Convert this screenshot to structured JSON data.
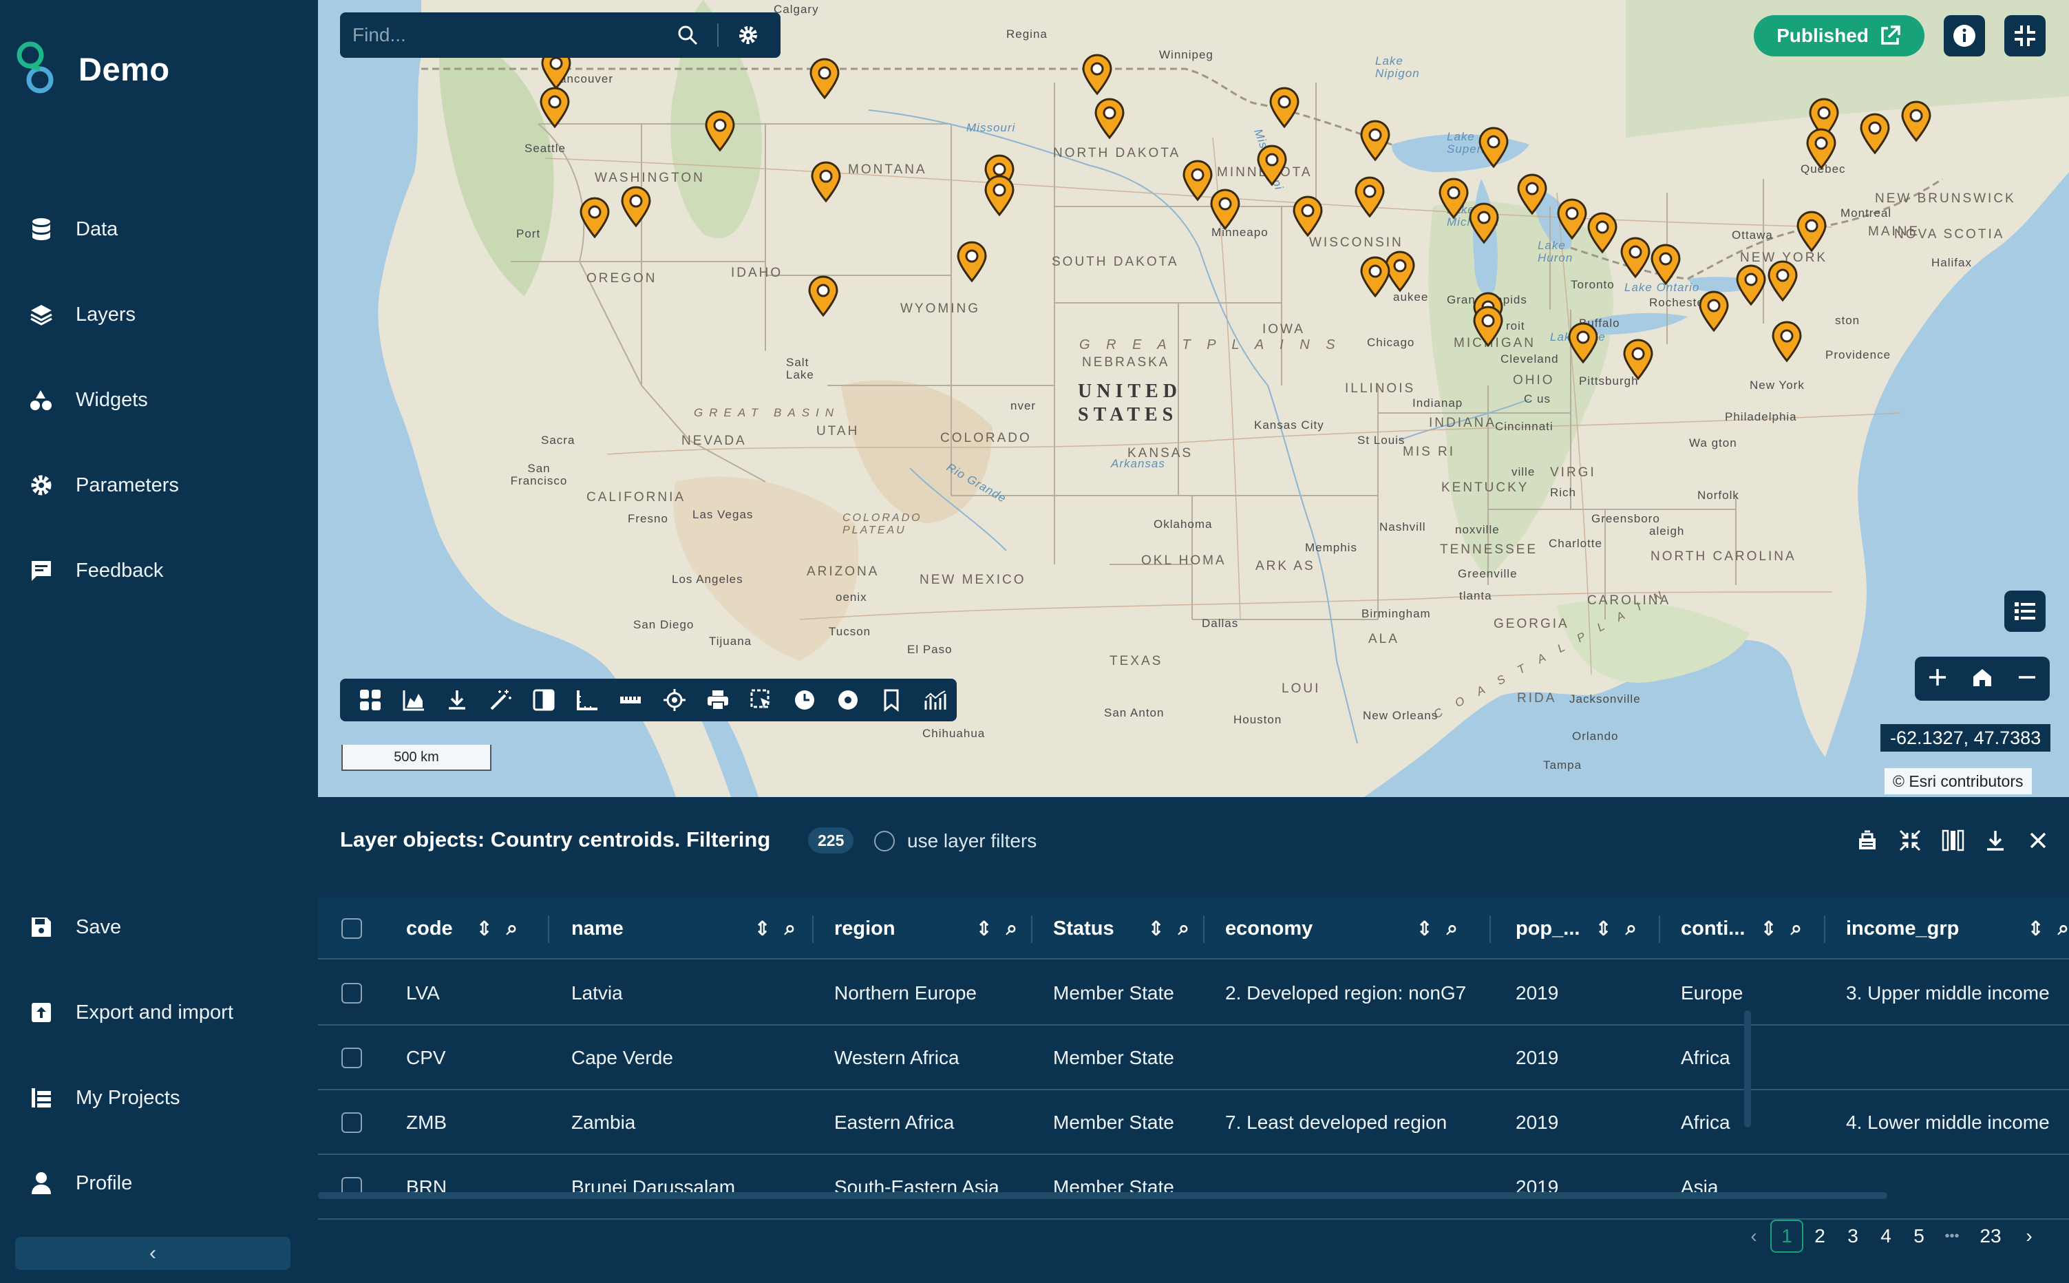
{
  "brand": {
    "title": "Demo"
  },
  "nav": {
    "data": "Data",
    "layers": "Layers",
    "widgets": "Widgets",
    "parameters": "Parameters",
    "feedback": "Feedback",
    "save": "Save",
    "export_import": "Export and import",
    "my_projects": "My Projects",
    "profile": "Profile"
  },
  "search": {
    "placeholder": "Find..."
  },
  "header": {
    "published_label": "Published"
  },
  "map": {
    "scale_label": "500 km",
    "coordinates": "-62.1327, 47.7383",
    "attribution": "© Esri contributors",
    "labels": {
      "country": "UNITED STATES",
      "great_plains": "G R E A T   P L A I N S",
      "great_basin": "GREAT BASIN",
      "colorado_plateau": "COLORADO PLATEAU",
      "washington": "WASHINGTON",
      "oregon": "OREGON",
      "idaho": "IDAHO",
      "montana": "MONTANA",
      "wyoming": "WYOMING",
      "nevada": "NEVADA",
      "utah": "UTAH",
      "colorado": "COLORADO",
      "california": "CALIFORNIA",
      "arizona": "ARIZONA",
      "new_mexico": "NEW MEXICO",
      "texas": "TEXAS",
      "north_dakota": "NORTH DAKOTA",
      "south_dakota": "SOUTH DAKOTA",
      "nebraska": "NEBRASKA",
      "kansas": "KANSAS",
      "oklahoma": "OKLAHOMA",
      "minnesota": "MINNESOTA",
      "iowa": "IOWA",
      "wisconsin": "WISCONSIN",
      "michigan": "MICHIGAN",
      "illinois": "ILLINOIS",
      "indiana": "INDIANA",
      "ohio": "OHIO",
      "kentucky": "KENTUCKY",
      "tennessee": "TENNESSEE",
      "georgia": "GEORGIA",
      "alabama": "ALA",
      "maine": "MAINE",
      "new_york": "NEW YORK",
      "virginia": "VIRGI",
      "north_carolina": "NORTH CAROLINA",
      "south_carolina": "CAROLINA",
      "nova_scotia": "NOVA SCOTIA",
      "new_brunswick": "NEW BRUNSWICK",
      "quebec": "Quebec",
      "vancouver": "Vancouver",
      "calgary": "Calgary",
      "regina": "Regina",
      "winnipeg": "Winnipeg",
      "seattle": "Seattle",
      "portland": "Port",
      "san_francisco": "San Francisco",
      "sacramento": "Sacra",
      "fresno": "Fresno",
      "las_vegas": "Las Vegas",
      "los_angeles": "Los Angeles",
      "san_diego": "San Diego",
      "tijuana": "Tijuana",
      "phoenix": "oenix",
      "tucson": "Tucson",
      "el_paso": "El Paso",
      "chihuahua": "Chihuahua",
      "salt_lake": "Salt Lake",
      "denver": "nver",
      "dallas": "Dallas",
      "san_antonio": "San Anton",
      "houston": "Houston",
      "new_orleans": "New Orleans",
      "memphis": "Memphis",
      "nashville": "Nashvill",
      "knoxville": "noxville",
      "birmingham": "Birmingham",
      "atlanta": "tlanta",
      "jacksonville": "Jacksonville",
      "orlando": "Orlando",
      "tampa": "Tampa",
      "minneapolis": "Minneapo",
      "chicago": "Chicago",
      "milwaukee": "aukee",
      "grand_rapids": "Grand Rapids",
      "detroit": "roit",
      "cleveland": "Cleveland",
      "pittsburgh": "Pittsburgh",
      "cincinnati": "Cincinnati",
      "columbus": "C  us",
      "indianapolis": "Indianap",
      "st_louis": "St Louis",
      "kansas_city": "Kansas City",
      "louisville": "ville",
      "toronto": "Toronto",
      "buffalo": "Buffalo",
      "rochester": "Rochester",
      "ottawa": "Ottawa",
      "montreal": "Montreal",
      "boston": "ston",
      "providence": "Providence",
      "new_york_city": "New York",
      "philadelphia": "Philadelphia",
      "washington_dc": "Wa  gton",
      "richmond": "Rich",
      "norfolk": "Norfolk",
      "raleigh": "aleigh",
      "greensboro": "Greensboro",
      "charlotte": "Charlotte",
      "greenville": "Greenville",
      "halifax": "Halifax",
      "lake_superior": "Lake Superior",
      "lake_michigan": "Lake Michigan",
      "lake_huron": "Lake Huron",
      "lake_erie": "Lake Erie",
      "lake_ontario": "Lake Ontario",
      "lake_nipigon": "Lake Nipigon",
      "missouri": "Missouri",
      "mississippi": "Mississippi",
      "arkansas_river": "Arkansas",
      "rio_grande": "Rio Grande",
      "kansas_state_mis": "MIS   RI",
      "arkansas_state": "ARK  AS",
      "louisiana": "LOUI",
      "florida": "RIDA",
      "coastal_plain": "C O A S T A L   P L A I N",
      "okla_city": "Oklahoma",
      "oklahoma_state": "OKL  HOMA"
    }
  },
  "panel": {
    "title": "Layer objects: Country centroids. Filtering",
    "count": "225",
    "use_layer_filters": "use layer filters"
  },
  "table": {
    "columns": [
      "code",
      "name",
      "region",
      "Status",
      "economy",
      "pop_...",
      "conti...",
      "income_grp"
    ],
    "rows": [
      [
        "LVA",
        "Latvia",
        "Northern Europe",
        "Member State",
        "2. Developed region: nonG7",
        "2019",
        "Europe",
        "3. Upper middle income"
      ],
      [
        "CPV",
        "Cape Verde",
        "Western Africa",
        "Member State",
        "",
        "2019",
        "Africa",
        ""
      ],
      [
        "ZMB",
        "Zambia",
        "Eastern Africa",
        "Member State",
        "7. Least developed region",
        "2019",
        "Africa",
        "4. Lower middle income"
      ],
      [
        "BRN",
        "Brunei Darussalam",
        "South-Eastern Asia",
        "Member State",
        "",
        "2019",
        "Asia",
        ""
      ]
    ]
  },
  "pager": {
    "pages": [
      "1",
      "2",
      "3",
      "4",
      "5"
    ],
    "ellipsis": "•••",
    "last": "23",
    "current": "1"
  },
  "colors": {
    "sidebar": "#0b3350",
    "accent": "#17a27a",
    "pin": "#f3a31c"
  },
  "pin_positions_geo": []
}
